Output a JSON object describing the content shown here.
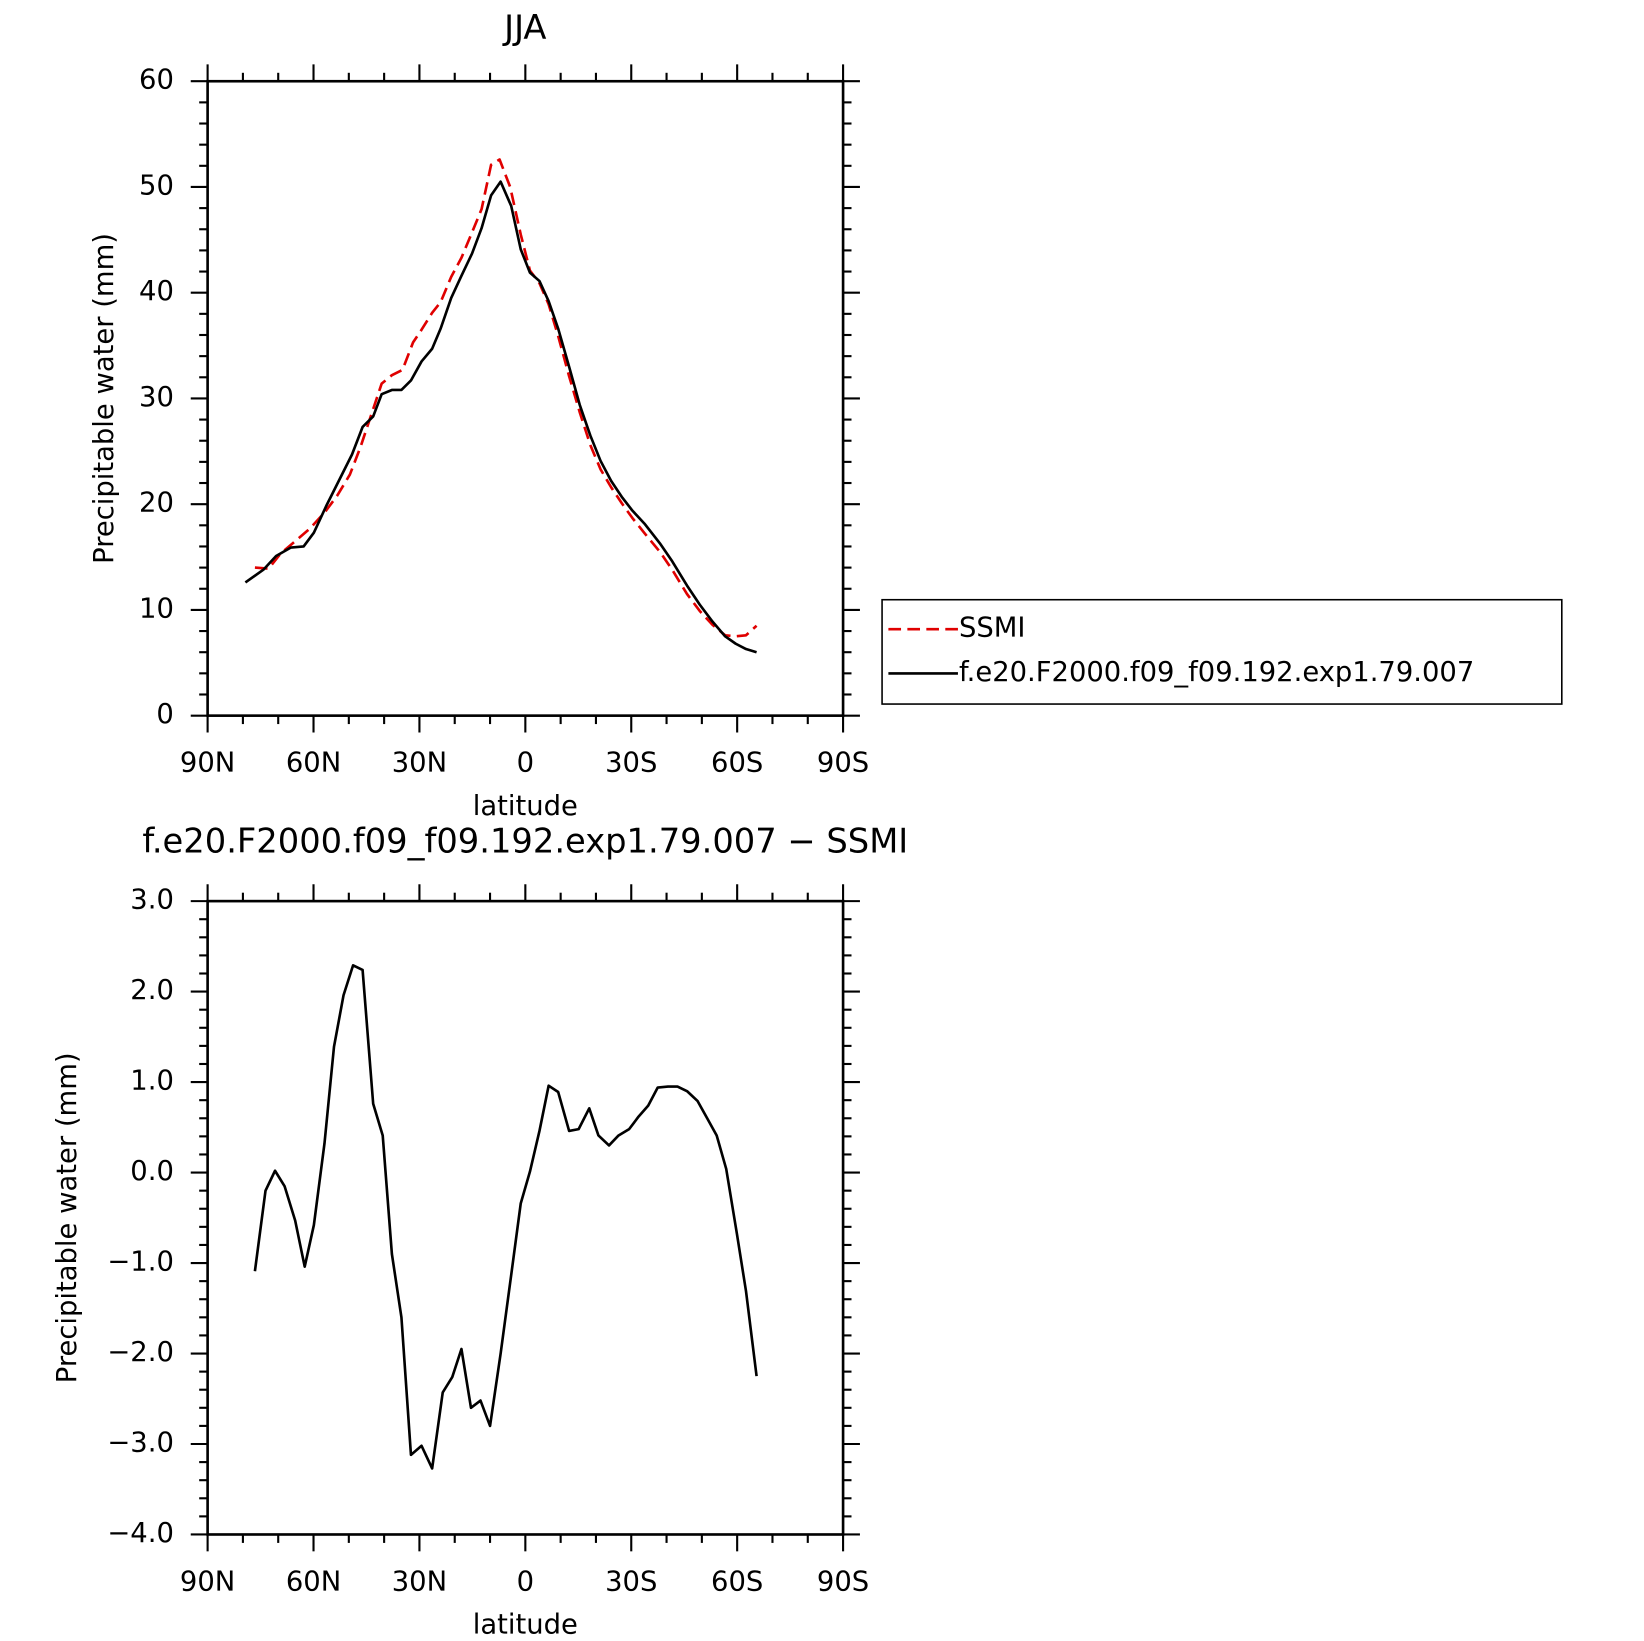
{
  "chart_data": [
    {
      "type": "line",
      "title": "JJA",
      "xlabel": "latitude",
      "ylabel": "Precipitable water (mm)",
      "xlim": [
        90,
        -90
      ],
      "xticks": [
        {
          "value": 90,
          "label": "90N"
        },
        {
          "value": 60,
          "label": "60N"
        },
        {
          "value": 30,
          "label": "30N"
        },
        0,
        {
          "value": -30,
          "label": "30S"
        },
        {
          "value": -60,
          "label": "60S"
        },
        {
          "value": -90,
          "label": "90S"
        }
      ],
      "xminorticks": [
        80,
        70,
        50,
        40,
        20,
        10,
        -10,
        -20,
        -40,
        -50,
        -70,
        -80
      ],
      "ylim": [
        0,
        60
      ],
      "yticks": [
        0,
        10,
        20,
        30,
        40,
        50,
        60
      ],
      "yminorticks": [
        2,
        4,
        6,
        8,
        12,
        14,
        16,
        18,
        22,
        24,
        26,
        28,
        32,
        34,
        36,
        38,
        42,
        44,
        46,
        48,
        52,
        54,
        56,
        58
      ],
      "legend": "right",
      "series": [
        {
          "name": "SSMI",
          "color": "#e00000",
          "linestyle": "dashed",
          "x": [
            76.6,
            72.7,
            69.4,
            65.2,
            61.0,
            56.9,
            53.3,
            49.7,
            46.7,
            43.7,
            40.7,
            37.8,
            34.8,
            31.8,
            29.4,
            26.4,
            24.0,
            21.0,
            18.1,
            15.1,
            12.4,
            9.7,
            7.3,
            4.3,
            1.3,
            -1.3,
            -4.0,
            -6.6,
            -9.3,
            -12.4,
            -15.4,
            -18.4,
            -21.3,
            -24.3,
            -27.3,
            -30.3,
            -33.9,
            -38.1,
            -41.6,
            -45.8,
            -49.4,
            -53.0,
            -56.6,
            -59.6,
            -62.5,
            -65.5
          ],
          "values": [
            14.0,
            13.9,
            15.3,
            16.5,
            17.7,
            19.2,
            20.8,
            22.8,
            25.4,
            28.4,
            31.4,
            32.2,
            32.7,
            35.3,
            36.5,
            38.1,
            39.1,
            41.5,
            43.3,
            45.7,
            47.9,
            52.1,
            52.6,
            50.0,
            45.5,
            42.1,
            40.9,
            38.9,
            35.9,
            32.1,
            28.7,
            25.6,
            23.3,
            21.6,
            20.1,
            18.7,
            17.2,
            15.5,
            13.8,
            11.5,
            9.9,
            8.6,
            7.6,
            7.5,
            7.6,
            8.5
          ]
        },
        {
          "name": "f.e20.F2000.f09_f09.192.exp1.79.007",
          "color": "#000000",
          "linestyle": "solid",
          "x": [
            79.3,
            74.2,
            70.6,
            66.4,
            62.8,
            59.9,
            56.3,
            52.7,
            49.1,
            46.1,
            43.1,
            40.7,
            37.8,
            35.1,
            32.4,
            29.4,
            26.4,
            24.0,
            21.0,
            18.1,
            15.1,
            12.4,
            9.7,
            7.0,
            4.0,
            1.3,
            -1.3,
            -4.0,
            -6.6,
            -9.3,
            -12.4,
            -15.4,
            -18.4,
            -21.3,
            -24.3,
            -27.3,
            -30.3,
            -33.9,
            -38.1,
            -41.6,
            -45.8,
            -49.4,
            -53.0,
            -56.6,
            -59.6,
            -62.5,
            -65.5
          ],
          "values": [
            12.6,
            13.8,
            15.1,
            15.9,
            16.0,
            17.3,
            19.9,
            22.3,
            24.7,
            27.3,
            28.3,
            30.4,
            30.8,
            30.8,
            31.7,
            33.5,
            34.7,
            36.6,
            39.5,
            41.6,
            43.7,
            46.1,
            49.2,
            50.5,
            48.2,
            44.1,
            41.9,
            41.1,
            39.2,
            36.6,
            33.0,
            29.4,
            26.5,
            24.1,
            22.2,
            20.7,
            19.4,
            18.1,
            16.3,
            14.6,
            12.3,
            10.5,
            8.9,
            7.5,
            6.8,
            6.3,
            6.0
          ]
        }
      ]
    },
    {
      "type": "line",
      "title": "f.e20.F2000.f09_f09.192.exp1.79.007 − SSMI",
      "xlabel": "latitude",
      "ylabel": "Precipitable water (mm)",
      "xlim": [
        90,
        -90
      ],
      "xticks": [
        {
          "value": 90,
          "label": "90N"
        },
        {
          "value": 60,
          "label": "60N"
        },
        {
          "value": 30,
          "label": "30N"
        },
        0,
        {
          "value": -30,
          "label": "30S"
        },
        {
          "value": -60,
          "label": "60S"
        },
        {
          "value": -90,
          "label": "90S"
        }
      ],
      "xminorticks": [
        80,
        70,
        50,
        40,
        20,
        10,
        -10,
        -20,
        -40,
        -50,
        -70,
        -80
      ],
      "ylim": [
        -4,
        3
      ],
      "yticks": [
        {
          "value": -4,
          "label": "−4.0"
        },
        {
          "value": -3,
          "label": "−3.0"
        },
        {
          "value": -2,
          "label": "−2.0"
        },
        {
          "value": -1,
          "label": "−1.0"
        },
        {
          "value": 0,
          "label": "0.0"
        },
        {
          "value": 1,
          "label": "1.0"
        },
        {
          "value": 2,
          "label": "2.0"
        },
        {
          "value": 3,
          "label": "3.0"
        }
      ],
      "yminorticks": [
        -3.8,
        -3.6,
        -3.4,
        -3.2,
        -2.8,
        -2.6,
        -2.4,
        -2.2,
        -1.8,
        -1.6,
        -1.4,
        -1.2,
        -0.8,
        -0.6,
        -0.4,
        -0.2,
        0.2,
        0.4,
        0.6,
        0.8,
        1.2,
        1.4,
        1.6,
        1.8,
        2.2,
        2.4,
        2.6,
        2.8
      ],
      "color": "#000000",
      "x": [
        76.6,
        73.6,
        70.9,
        68.2,
        65.2,
        62.5,
        59.9,
        56.9,
        54.2,
        51.5,
        48.8,
        46.1,
        43.1,
        40.4,
        37.8,
        35.1,
        32.4,
        29.4,
        26.4,
        23.4,
        20.7,
        18.1,
        15.4,
        12.7,
        10.0,
        7.0,
        4.0,
        1.3,
        -1.3,
        -4.0,
        -6.6,
        -9.3,
        -12.4,
        -15.1,
        -18.1,
        -20.7,
        -23.7,
        -26.4,
        -29.4,
        -32.1,
        -34.8,
        -37.5,
        -40.4,
        -43.1,
        -45.8,
        -48.8,
        -51.5,
        -54.2,
        -56.9,
        -59.9,
        -62.5,
        -65.5
      ],
      "values": [
        -1.09,
        -0.2,
        0.02,
        -0.15,
        -0.53,
        -1.04,
        -0.58,
        0.32,
        1.39,
        1.96,
        2.29,
        2.24,
        0.76,
        0.41,
        -0.9,
        -1.6,
        -3.12,
        -3.02,
        -3.27,
        -2.43,
        -2.26,
        -1.95,
        -2.6,
        -2.52,
        -2.8,
        -2.0,
        -1.13,
        -0.34,
        0.01,
        0.46,
        0.96,
        0.89,
        0.46,
        0.48,
        0.71,
        0.41,
        0.3,
        0.41,
        0.48,
        0.62,
        0.74,
        0.94,
        0.95,
        0.95,
        0.9,
        0.79,
        0.6,
        0.41,
        0.04,
        -0.67,
        -1.31,
        -2.25
      ]
    }
  ]
}
